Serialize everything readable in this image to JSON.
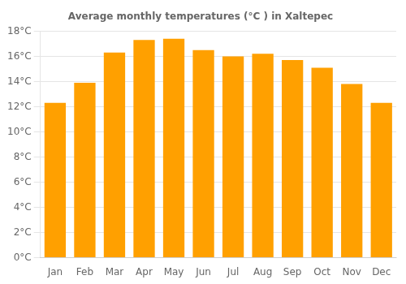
{
  "chart_data": {
    "type": "bar",
    "title": "Average monthly temperatures (°C ) in Xaltepec",
    "categories": [
      "Jan",
      "Feb",
      "Mar",
      "Apr",
      "May",
      "Jun",
      "Jul",
      "Aug",
      "Sep",
      "Oct",
      "Nov",
      "Dec"
    ],
    "values": [
      12.3,
      13.9,
      16.3,
      17.3,
      17.4,
      16.5,
      16.0,
      16.2,
      15.7,
      15.1,
      13.8,
      12.3
    ],
    "color": "#FFA000",
    "ylim": [
      0,
      18
    ],
    "yticks": [
      {
        "value": 0,
        "label": "0°C"
      },
      {
        "value": 2,
        "label": "2°C"
      },
      {
        "value": 4,
        "label": "4°C"
      },
      {
        "value": 6,
        "label": "6°C"
      },
      {
        "value": 8,
        "label": "8°C"
      },
      {
        "value": 10,
        "label": "10°C"
      },
      {
        "value": 12,
        "label": "12°C"
      },
      {
        "value": 14,
        "label": "14°C"
      },
      {
        "value": 16,
        "label": "16°C"
      },
      {
        "value": 18,
        "label": "18°C"
      }
    ],
    "grid": true
  }
}
